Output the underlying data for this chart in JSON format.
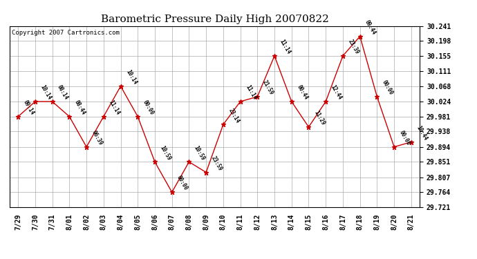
{
  "title": "Barometric Pressure Daily High 20070822",
  "copyright": "Copyright 2007 Cartronics.com",
  "x_labels": [
    "7/29",
    "7/30",
    "7/31",
    "8/01",
    "8/02",
    "8/03",
    "8/04",
    "8/05",
    "8/06",
    "8/07",
    "8/08",
    "8/09",
    "8/10",
    "8/11",
    "8/12",
    "8/13",
    "8/14",
    "8/15",
    "8/16",
    "8/17",
    "8/18",
    "8/19",
    "8/20",
    "8/21"
  ],
  "y_values": [
    29.981,
    30.024,
    30.024,
    29.981,
    29.894,
    29.981,
    30.068,
    29.981,
    29.851,
    29.764,
    29.851,
    29.821,
    29.958,
    30.024,
    30.038,
    30.155,
    30.024,
    29.951,
    30.024,
    30.155,
    30.211,
    30.038,
    29.894,
    29.908
  ],
  "point_labels": [
    "09:14",
    "10:14",
    "08:14",
    "08:44",
    "06:39",
    "11:14",
    "10:14",
    "00:00",
    "10:59",
    "00:00",
    "10:59",
    "23:59",
    "23:14",
    "11:14",
    "21:59",
    "11:14",
    "00:44",
    "11:29",
    "12:44",
    "23:39",
    "09:44",
    "00:00",
    "00:00",
    "10:44"
  ],
  "ylim_min": 29.721,
  "ylim_max": 30.241,
  "yticks": [
    29.721,
    29.764,
    29.807,
    29.851,
    29.894,
    29.938,
    29.981,
    30.024,
    30.068,
    30.111,
    30.155,
    30.198,
    30.241
  ],
  "line_color": "#cc0000",
  "marker_color": "#cc0000",
  "bg_color": "#ffffff",
  "grid_color": "#aaaaaa",
  "title_fontsize": 11,
  "tick_fontsize": 7,
  "copyright_fontsize": 6.5,
  "annot_fontsize": 5.5
}
